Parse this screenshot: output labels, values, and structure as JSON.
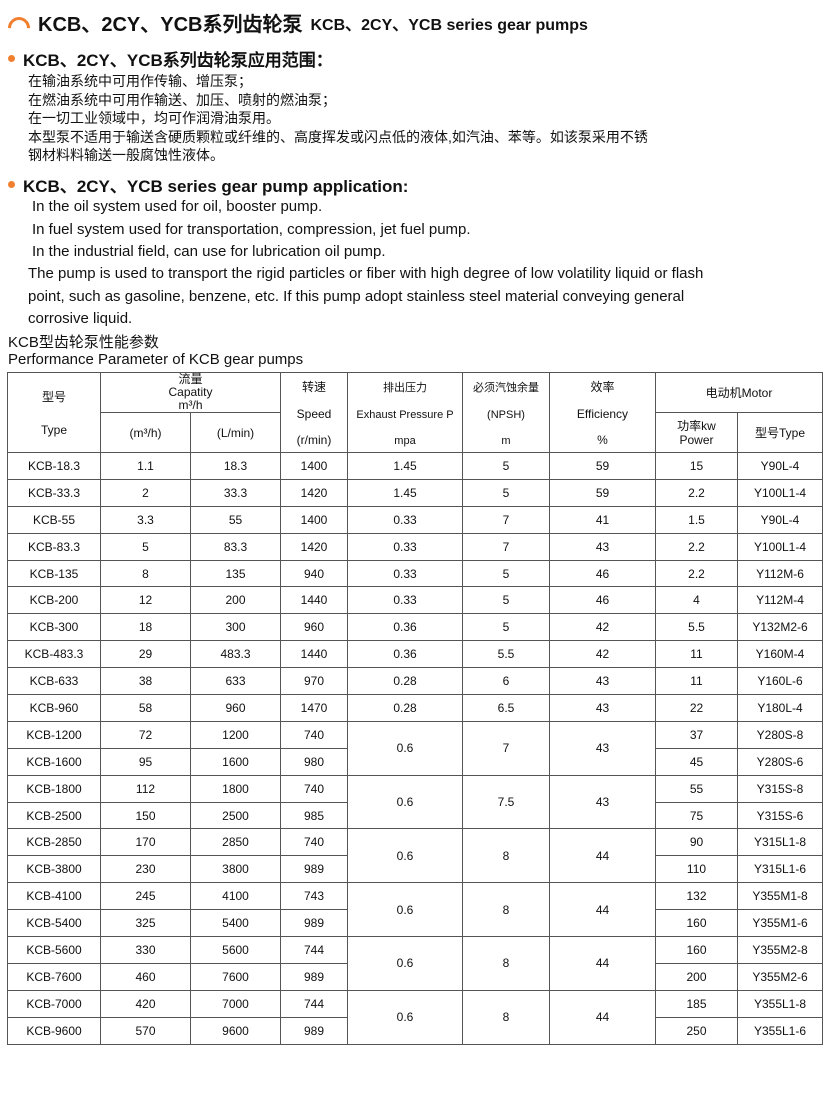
{
  "title": {
    "cn": "KCB、2CY、YCB系列齿轮泵",
    "en": "KCB、2CY、YCB series gear pumps",
    "icon": "arc-icon",
    "accent": "#f08030"
  },
  "cn_section": {
    "heading": "KCB、2CY、YCB系列齿轮泵应用范围：",
    "lines": [
      "在输油系统中可用作传输、增压泵；",
      "在燃油系统中可用作输送、加压、喷射的燃油泵；",
      "在一切工业领域中，均可作润滑油泵用。",
      "本型泵不适用于输送含硬质颗粒或纤维的、高度挥发或闪点低的液体,如汽油、苯等。如该泵采用不锈",
      "钢材料料输送一般腐蚀性液体。"
    ]
  },
  "en_section": {
    "heading": "KCB、2CY、YCB series gear pump application:",
    "lines": [
      "In the oil system used for oil, booster pump.",
      "In fuel system used for transportation, compression, jet fuel pump.",
      "In the industrial field, can use for lubrication oil pump."
    ],
    "para": [
      "The pump is used to transport the rigid particles or fiber with high degree of low volatility liquid or flash",
      "point, such as gasoline, benzene, etc. If this pump adopt stainless steel material conveying general",
      "corrosive liquid."
    ]
  },
  "table_caption": {
    "cn": "KCB型齿轮泵性能参数",
    "en": "Performance Parameter of KCB gear pumps"
  },
  "table": {
    "headers": {
      "type_cn": "型号",
      "type_en": "Type",
      "cap_cn": "流量",
      "cap_en": "Capatity",
      "cap_unit": "m³/h",
      "cap_m3": "(m³/h)",
      "cap_lmin": "(L/min)",
      "speed_cn": "转速",
      "speed_en": "Speed",
      "speed_unit": "(r/min)",
      "pres_cn": "排出压力",
      "pres_en": "Exhaust Pressure P",
      "pres_unit": "mpa",
      "npsh_cn": "必须汽蚀余量",
      "npsh_en": "(NPSH)",
      "npsh_unit": "m",
      "eff_cn": "效率",
      "eff_en": "Efficiency",
      "eff_unit": "%",
      "motor": "电动机Motor",
      "power_cn": "功率kw",
      "power_en": "Power",
      "mtype": "型号Type"
    },
    "rows": [
      [
        "KCB-18.3",
        "1.1",
        "18.3",
        "1400",
        "1.45",
        "5",
        "59",
        "15",
        "Y90L-4"
      ],
      [
        "KCB-33.3",
        "2",
        "33.3",
        "1420",
        "1.45",
        "5",
        "59",
        "2.2",
        "Y100L1-4"
      ],
      [
        "KCB-55",
        "3.3",
        "55",
        "1400",
        "0.33",
        "7",
        "41",
        "1.5",
        "Y90L-4"
      ],
      [
        "KCB-83.3",
        "5",
        "83.3",
        "1420",
        "0.33",
        "7",
        "43",
        "2.2",
        "Y100L1-4"
      ],
      [
        "KCB-135",
        "8",
        "135",
        "940",
        "0.33",
        "5",
        "46",
        "2.2",
        "Y112M-6"
      ],
      [
        "KCB-200",
        "12",
        "200",
        "1440",
        "0.33",
        "5",
        "46",
        "4",
        "Y112M-4"
      ],
      [
        "KCB-300",
        "18",
        "300",
        "960",
        "0.36",
        "5",
        "42",
        "5.5",
        "Y132M2-6"
      ],
      [
        "KCB-483.3",
        "29",
        "483.3",
        "1440",
        "0.36",
        "5.5",
        "42",
        "11",
        "Y160M-4"
      ],
      [
        "KCB-633",
        "38",
        "633",
        "970",
        "0.28",
        "6",
        "43",
        "11",
        "Y160L-6"
      ],
      [
        "KCB-960",
        "58",
        "960",
        "1470",
        "0.28",
        "6.5",
        "43",
        "22",
        "Y180L-4"
      ],
      [
        "KCB-1200",
        "72",
        "1200",
        "740",
        "0.6",
        "7",
        "43",
        "37",
        "Y280S-8"
      ],
      [
        "KCB-1600",
        "95",
        "1600",
        "980",
        null,
        null,
        null,
        "45",
        "Y280S-6"
      ],
      [
        "KCB-1800",
        "112",
        "1800",
        "740",
        "0.6",
        "7.5",
        "43",
        "55",
        "Y315S-8"
      ],
      [
        "KCB-2500",
        "150",
        "2500",
        "985",
        null,
        null,
        null,
        "75",
        "Y315S-6"
      ],
      [
        "KCB-2850",
        "170",
        "2850",
        "740",
        "0.6",
        "8",
        "44",
        "90",
        "Y315L1-8"
      ],
      [
        "KCB-3800",
        "230",
        "3800",
        "989",
        null,
        null,
        null,
        "110",
        "Y315L1-6"
      ],
      [
        "KCB-4100",
        "245",
        "4100",
        "743",
        "0.6",
        "8",
        "44",
        "132",
        "Y355M1-8"
      ],
      [
        "KCB-5400",
        "325",
        "5400",
        "989",
        null,
        null,
        null,
        "160",
        "Y355M1-6"
      ],
      [
        "KCB-5600",
        "330",
        "5600",
        "744",
        "0.6",
        "8",
        "44",
        "160",
        "Y355M2-8"
      ],
      [
        "KCB-7600",
        "460",
        "7600",
        "989",
        null,
        null,
        null,
        "200",
        "Y355M2-6"
      ],
      [
        "KCB-7000",
        "420",
        "7000",
        "744",
        "0.6",
        "8",
        "44",
        "185",
        "Y355L1-8"
      ],
      [
        "KCB-9600",
        "570",
        "9600",
        "989",
        null,
        null,
        null,
        "250",
        "Y355L1-6"
      ]
    ]
  }
}
